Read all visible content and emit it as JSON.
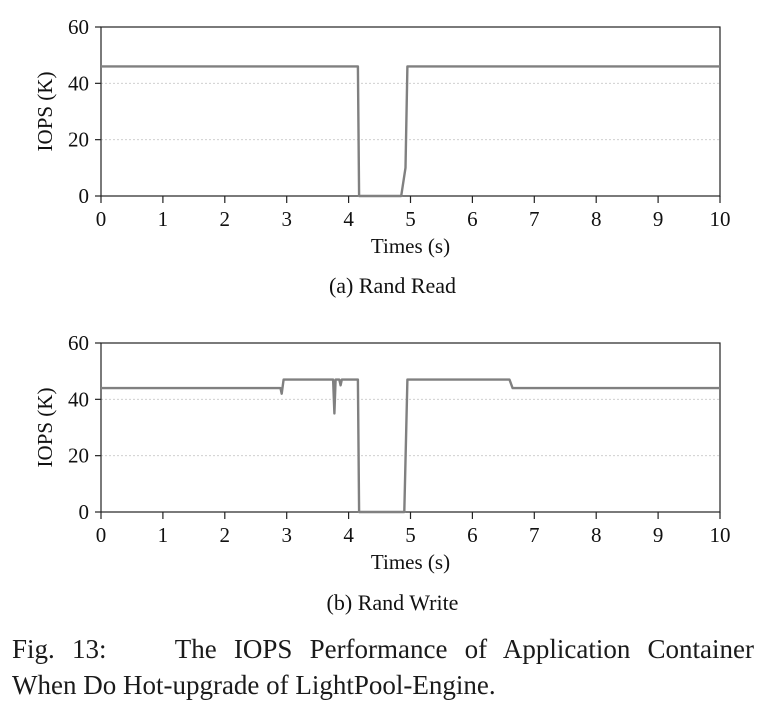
{
  "chart_data": [
    {
      "type": "line",
      "subtitle": "(a) Rand Read",
      "xlabel": "Times (s)",
      "ylabel": "IOPS (K)",
      "xlim": [
        0,
        10
      ],
      "ylim": [
        0,
        60
      ],
      "xticks": [
        "0",
        "1",
        "2",
        "3",
        "4",
        "5",
        "6",
        "7",
        "8",
        "9",
        "10"
      ],
      "yticks": [
        "0",
        "20",
        "40",
        "60"
      ],
      "grid": "horizontal",
      "line_color": "#808080",
      "series": [
        {
          "x": [
            0,
            4.15,
            4.17,
            4.85,
            4.92,
            4.95,
            10
          ],
          "y": [
            46,
            46,
            0,
            0,
            10,
            46,
            46
          ]
        }
      ]
    },
    {
      "type": "line",
      "subtitle": "(b) Rand Write",
      "xlabel": "Times (s)",
      "ylabel": "IOPS (K)",
      "xlim": [
        0,
        10
      ],
      "ylim": [
        0,
        60
      ],
      "xticks": [
        "0",
        "1",
        "2",
        "3",
        "4",
        "5",
        "6",
        "7",
        "8",
        "9",
        "10"
      ],
      "yticks": [
        "0",
        "20",
        "40",
        "60"
      ],
      "grid": "horizontal",
      "line_color": "#808080",
      "series": [
        {
          "x": [
            0,
            2.9,
            2.92,
            2.95,
            3.75,
            3.77,
            3.79,
            3.85,
            3.87,
            3.89,
            4.15,
            4.17,
            4.9,
            4.95,
            6.6,
            6.65,
            10
          ],
          "y": [
            44,
            44,
            42,
            47,
            47,
            35,
            47,
            47,
            45,
            47,
            47,
            0,
            0,
            47,
            47,
            44,
            44
          ]
        }
      ]
    }
  ],
  "caption": {
    "line1": "Fig. 13:    The IOPS Performance of Application Container",
    "line2": "When Do Hot-upgrade of LightPool-Engine."
  }
}
